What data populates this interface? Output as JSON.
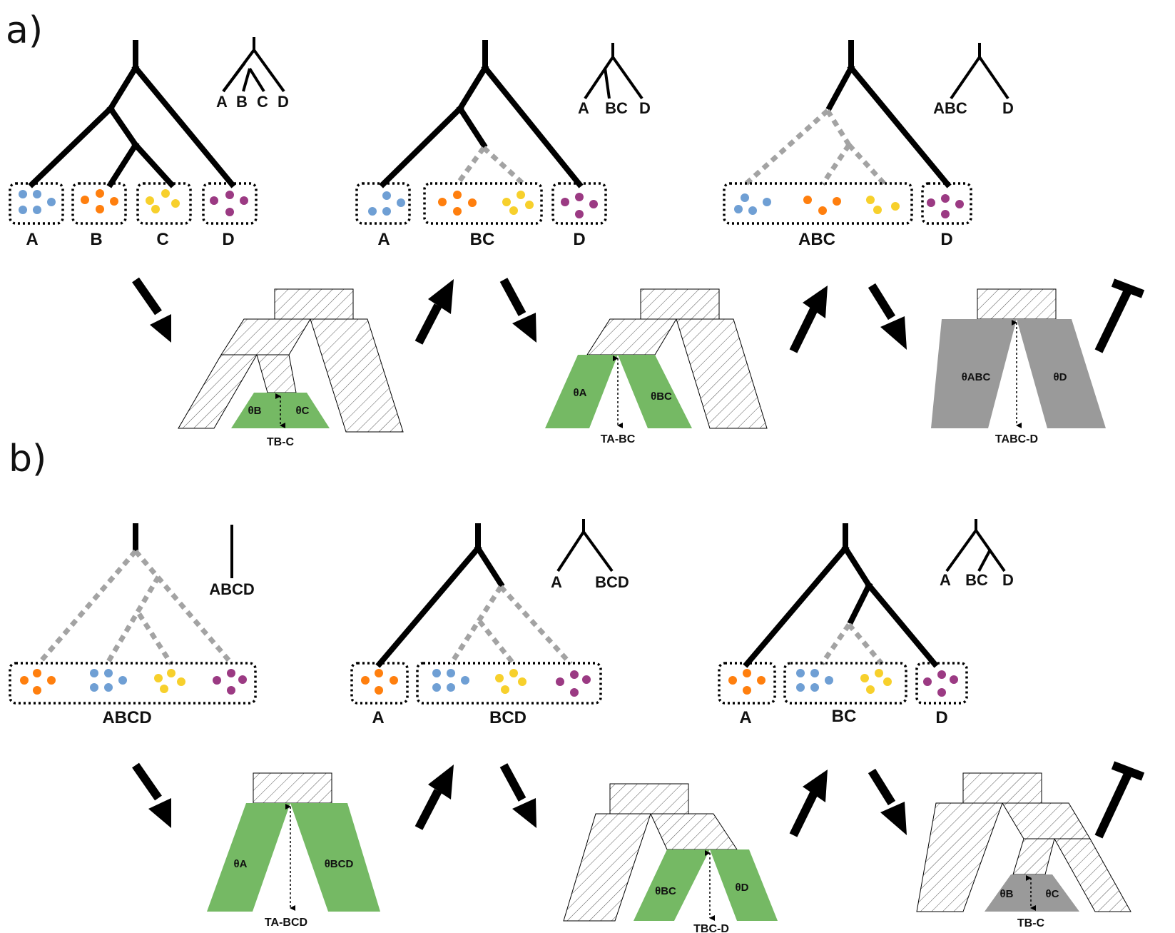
{
  "panels": {
    "a": "a)",
    "b": "b)"
  },
  "colors": {
    "blue": "#6f9fd4",
    "orange": "#ff7f0e",
    "yellow": "#f7d02c",
    "purple": "#9b3a83",
    "green": "#75b964",
    "gray": "#9a9a9a",
    "dashed": "#a3a3a3",
    "black": "#000000"
  },
  "row_a": {
    "col1": {
      "mini": [
        "A",
        "B",
        "C",
        "D"
      ],
      "boxes": [
        "A",
        "B",
        "C",
        "D"
      ],
      "theta_left": "θB",
      "theta_right": "θC",
      "tau": "TB-C"
    },
    "col2": {
      "mini": [
        "A",
        "BC",
        "D"
      ],
      "boxes": [
        "A",
        "BC",
        "D"
      ],
      "theta_left": "θA",
      "theta_right": "θBC",
      "tau": "TA-BC"
    },
    "col3": {
      "mini": [
        "ABC",
        "D"
      ],
      "boxes": [
        "ABC",
        "D"
      ],
      "theta_left": "θABC",
      "theta_right": "θD",
      "tau": "TABC-D"
    }
  },
  "row_b": {
    "col1": {
      "mini": [
        "ABCD"
      ],
      "boxes": [
        "ABCD"
      ],
      "theta_left": "θA",
      "theta_right": "θBCD",
      "tau": "TA-BCD"
    },
    "col2": {
      "mini": [
        "A",
        "BCD"
      ],
      "boxes": [
        "A",
        "BCD"
      ],
      "theta_left": "θBC",
      "theta_right": "θD",
      "tau": "TBC-D"
    },
    "col3": {
      "mini": [
        "A",
        "BC",
        "D"
      ],
      "boxes": [
        "A",
        "BC",
        "D"
      ],
      "theta_left": "θB",
      "theta_right": "θC",
      "tau": "TB-C"
    }
  }
}
